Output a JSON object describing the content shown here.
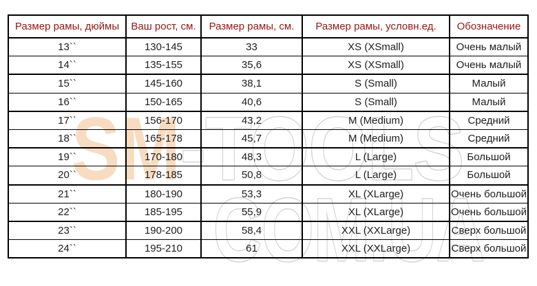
{
  "table": {
    "headers": [
      "Размер рамы, дюймы",
      "Ваш рост, см.",
      "Размер рамы, см.",
      "Размер рамы, условн.ед.",
      "Обозначение"
    ],
    "rows": [
      [
        "13``",
        "130-145",
        "33",
        "XS (XSmall)",
        "Очень малый"
      ],
      [
        "14``",
        "135-155",
        "35,6",
        "XS (XSmall)",
        "Очень малый"
      ],
      [
        "15``",
        "145-160",
        "38,1",
        "S (Small)",
        "Малый"
      ],
      [
        "16``",
        "150-165",
        "40,6",
        "S (Small)",
        "Малый"
      ],
      [
        "17``",
        "156-170",
        "43,2",
        "M (Medium)",
        "Средний"
      ],
      [
        "18``",
        "165-178",
        "45,7",
        "M (Medium)",
        "Средний"
      ],
      [
        "19``",
        "170-180",
        "48,3",
        "L (Large)",
        "Большой"
      ],
      [
        "20``",
        "178-185",
        "50,8",
        "L (Large)",
        "Большой"
      ],
      [
        "21``",
        "180-190",
        "53,3",
        "XL (XLarge)",
        "Очень большой"
      ],
      [
        "22``",
        "185-195",
        "55,9",
        "XL (XLarge)",
        "Очень большой"
      ],
      [
        "23``",
        "190-200",
        "58,4",
        "XXL (XXLarge)",
        "Сверх большой"
      ],
      [
        "24``",
        "195-210",
        "61",
        "XXL (XXLarge)",
        "Сверх большой"
      ]
    ]
  },
  "watermark": {
    "part1": "SM",
    "part2": "-TOOLS",
    "line2": "COM.UA"
  },
  "colors": {
    "header-text": "#9a1414",
    "cell-text": "#1c1c1c",
    "border": "#000000",
    "wm-peach": "#f8dcc1",
    "wm-halo": "#ffffff",
    "wm-gray": "#d4d4d4",
    "background": "#ffffff"
  }
}
